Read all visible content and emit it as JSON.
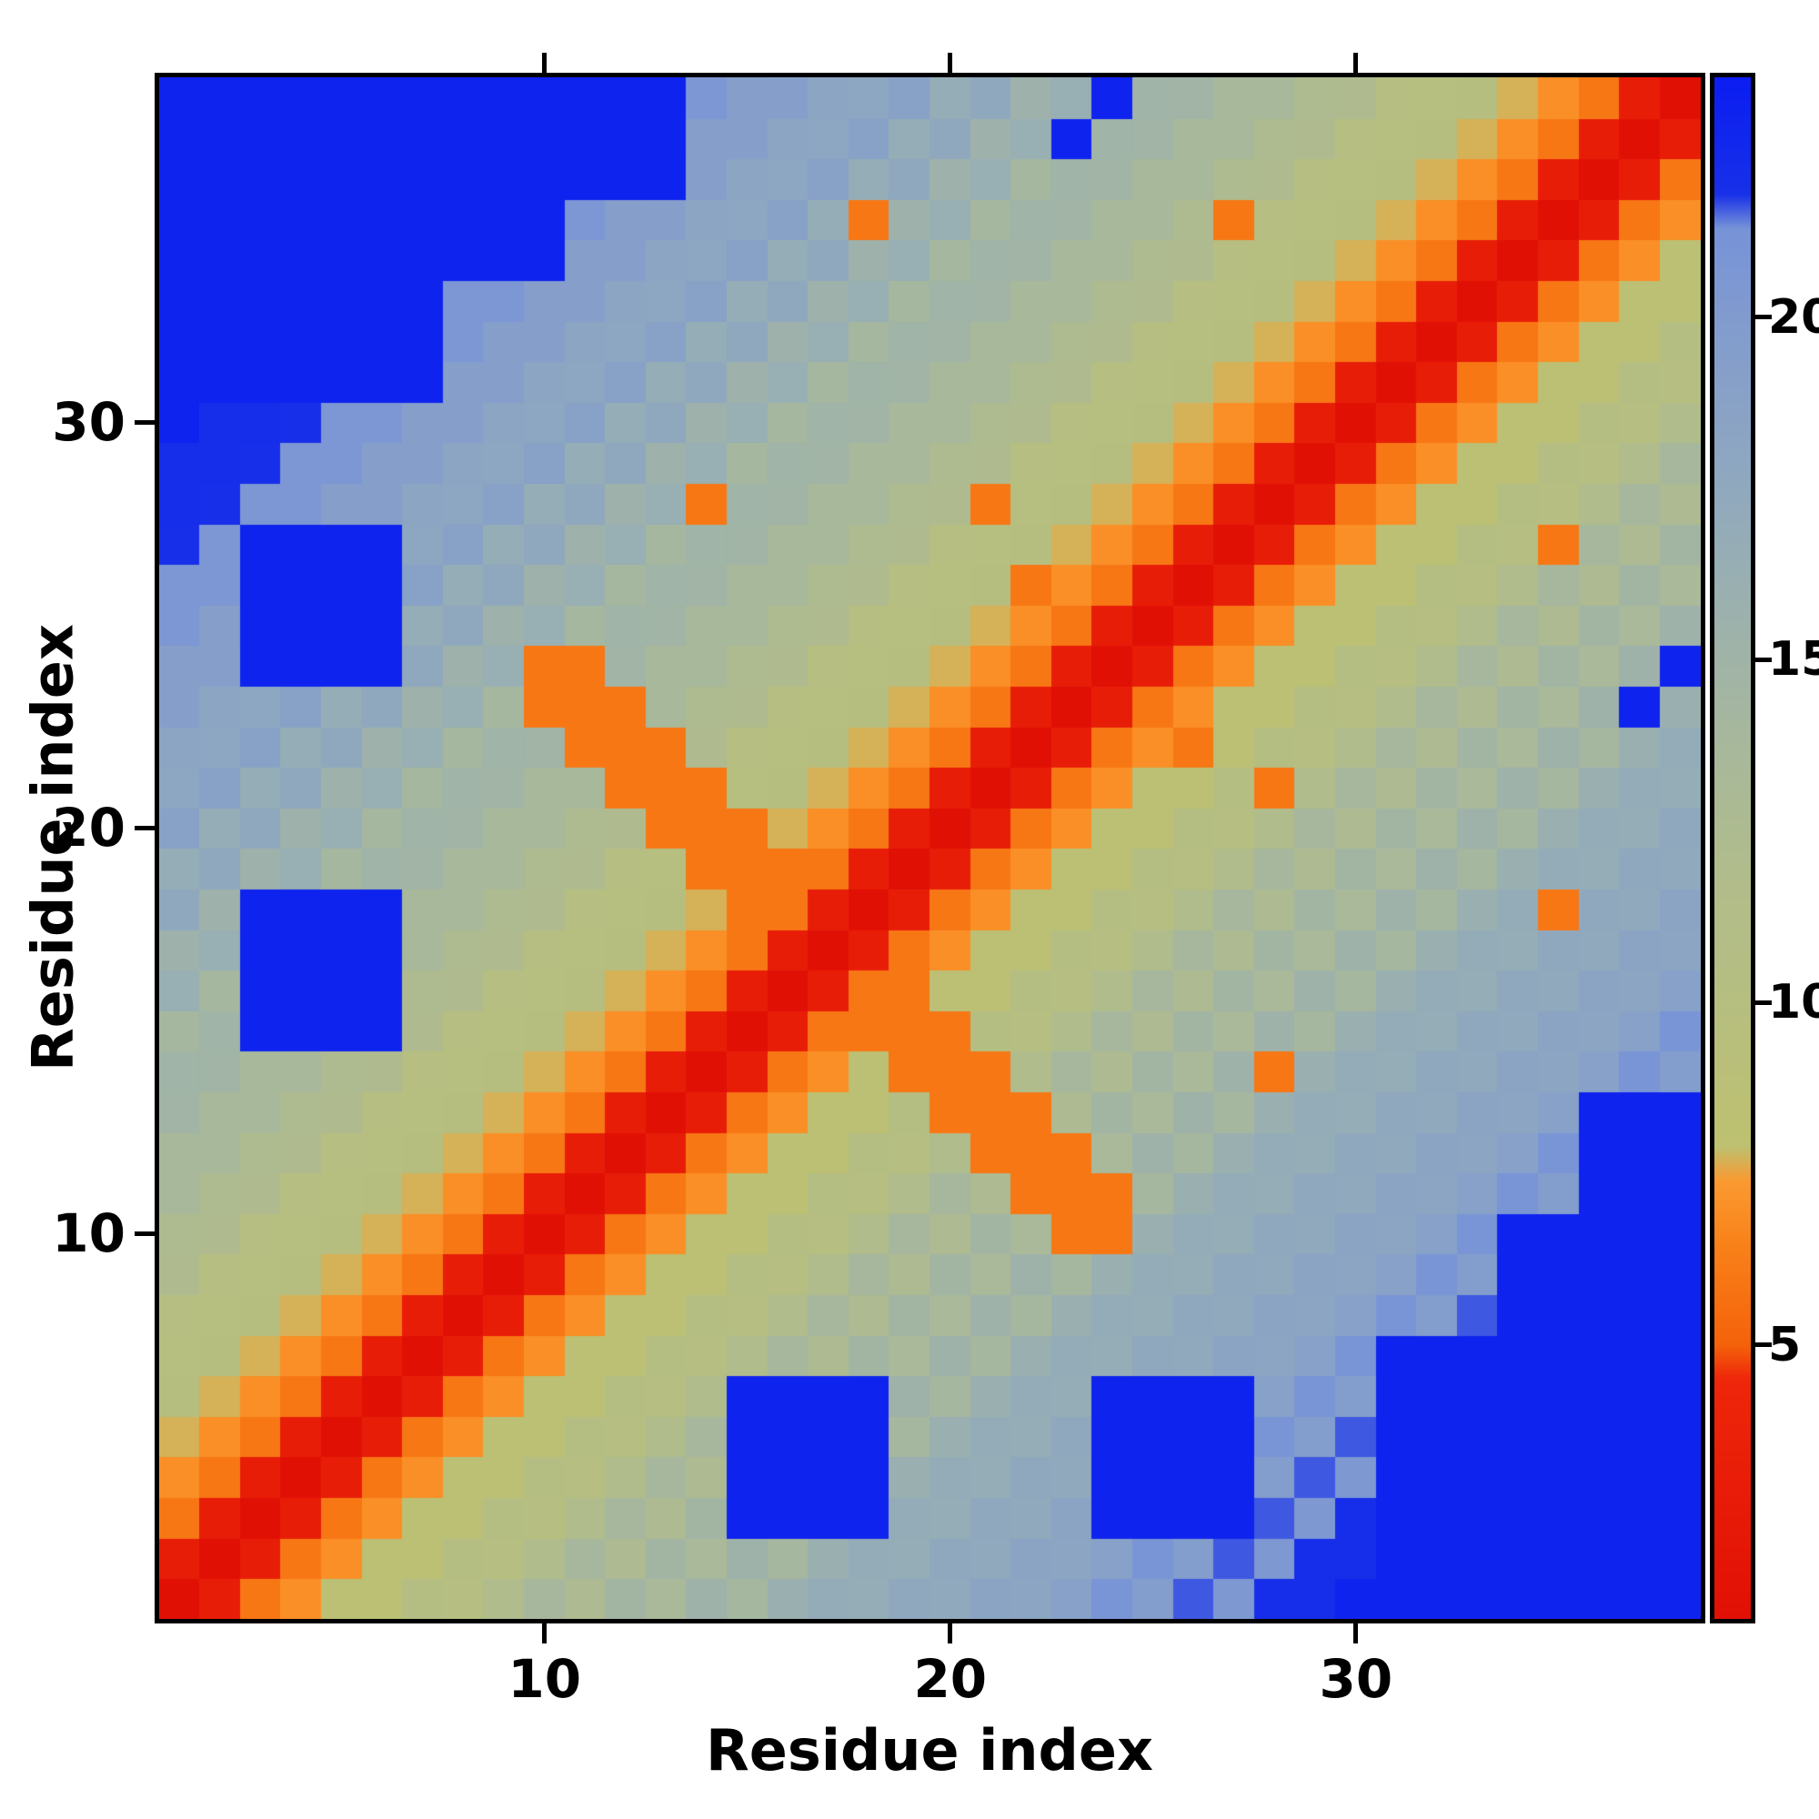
{
  "chart_data": {
    "type": "heatmap",
    "title": "",
    "xlabel": "Residue index",
    "ylabel": "Residue index",
    "x_range": [
      1,
      38
    ],
    "y_range": [
      1,
      38
    ],
    "x_ticks": [
      10,
      20,
      30
    ],
    "y_ticks": [
      10,
      20,
      30
    ],
    "grid": false,
    "colorbar": {
      "position": "right",
      "ticks": [
        5,
        10,
        15,
        20
      ],
      "value_range": [
        1,
        23.5
      ]
    },
    "colormap": [
      {
        "value": 1,
        "color": "#e11005"
      },
      {
        "value": 4.5,
        "color": "#ee260a"
      },
      {
        "value": 5,
        "color": "#f4620a"
      },
      {
        "value": 6.5,
        "color": "#f9821a"
      },
      {
        "value": 7.4,
        "color": "#fa9a31"
      },
      {
        "value": 7.9,
        "color": "#bdc170"
      },
      {
        "value": 10,
        "color": "#b6be80"
      },
      {
        "value": 12,
        "color": "#b0bc8c"
      },
      {
        "value": 14,
        "color": "#a6b79e"
      },
      {
        "value": 16,
        "color": "#9ab0b0"
      },
      {
        "value": 18,
        "color": "#8da6c2"
      },
      {
        "value": 20,
        "color": "#819bce"
      },
      {
        "value": 21.3,
        "color": "#7793d8"
      },
      {
        "value": 21.8,
        "color": "#1830e8"
      },
      {
        "value": 23.5,
        "color": "#0b1df2"
      }
    ],
    "matrix_row_order": "bottom-to-top (row 0 = residue 1)",
    "matrix": [
      [
        1,
        3,
        6,
        7,
        8,
        9,
        10,
        11,
        12,
        13,
        13,
        14,
        14,
        15,
        15,
        16,
        16,
        17,
        17,
        18,
        18,
        19,
        19,
        20,
        20,
        21,
        21,
        22,
        22,
        23,
        23,
        23,
        23,
        23,
        23,
        23,
        23,
        23
      ],
      [
        3,
        1,
        3,
        6,
        7,
        8,
        9,
        10,
        11,
        12,
        13,
        13,
        14,
        14,
        15,
        15,
        16,
        16,
        17,
        17,
        18,
        18,
        19,
        19,
        20,
        20,
        21,
        21,
        22,
        22,
        23,
        23,
        23,
        23,
        23,
        23,
        23,
        23
      ],
      [
        6,
        3,
        1,
        3,
        6,
        7,
        8,
        9,
        10,
        11,
        12,
        13,
        13,
        14,
        23,
        23,
        23,
        23,
        16,
        17,
        17,
        18,
        18,
        23,
        23,
        23,
        23,
        21,
        21,
        22,
        23,
        23,
        23,
        23,
        23,
        23,
        23,
        23
      ],
      [
        7,
        6,
        3,
        1,
        3,
        6,
        7,
        8,
        9,
        10,
        11,
        12,
        13,
        13,
        23,
        23,
        23,
        23,
        16,
        16,
        17,
        17,
        18,
        23,
        23,
        23,
        23,
        20,
        21,
        21,
        23,
        23,
        23,
        23,
        23,
        23,
        23,
        23
      ],
      [
        8,
        7,
        6,
        3,
        1,
        3,
        6,
        7,
        8,
        9,
        10,
        11,
        12,
        13,
        23,
        23,
        23,
        23,
        15,
        16,
        16,
        17,
        17,
        23,
        23,
        23,
        23,
        20,
        20,
        21,
        23,
        23,
        23,
        23,
        23,
        23,
        23,
        23
      ],
      [
        9,
        8,
        7,
        6,
        3,
        1,
        3,
        6,
        7,
        8,
        9,
        10,
        11,
        12,
        23,
        23,
        23,
        23,
        15,
        15,
        16,
        16,
        17,
        23,
        23,
        23,
        23,
        19,
        20,
        20,
        23,
        23,
        23,
        23,
        23,
        23,
        23,
        23
      ],
      [
        10,
        9,
        8,
        7,
        6,
        3,
        1,
        3,
        6,
        7,
        8,
        9,
        10,
        11,
        12,
        13,
        13,
        14,
        14,
        15,
        15,
        16,
        16,
        17,
        17,
        18,
        18,
        19,
        19,
        20,
        23,
        23,
        23,
        23,
        23,
        23,
        23,
        23
      ],
      [
        11,
        10,
        9,
        8,
        7,
        6,
        3,
        1,
        3,
        6,
        7,
        8,
        9,
        10,
        11,
        12,
        13,
        13,
        14,
        14,
        15,
        15,
        16,
        16,
        17,
        17,
        18,
        18,
        19,
        19,
        20,
        20,
        21,
        23,
        23,
        23,
        23,
        23
      ],
      [
        12,
        11,
        10,
        9,
        8,
        7,
        6,
        3,
        1,
        3,
        6,
        7,
        8,
        9,
        10,
        11,
        12,
        13,
        13,
        14,
        14,
        15,
        15,
        16,
        16,
        17,
        17,
        18,
        18,
        19,
        19,
        20,
        20,
        23,
        23,
        23,
        23,
        23
      ],
      [
        13,
        12,
        11,
        10,
        9,
        8,
        7,
        6,
        3,
        1,
        3,
        6,
        7,
        8,
        9,
        10,
        11,
        12,
        13,
        13,
        14,
        14,
        6,
        6,
        16,
        16,
        17,
        17,
        18,
        18,
        19,
        19,
        20,
        23,
        23,
        23,
        23,
        23
      ],
      [
        13,
        13,
        12,
        11,
        10,
        9,
        8,
        7,
        6,
        3,
        1,
        3,
        6,
        7,
        8,
        9,
        10,
        11,
        12,
        13,
        13,
        6,
        6,
        6,
        15,
        16,
        16,
        17,
        17,
        18,
        18,
        19,
        19,
        20,
        20,
        23,
        23,
        23
      ],
      [
        14,
        13,
        13,
        12,
        11,
        10,
        9,
        8,
        7,
        6,
        3,
        1,
        3,
        6,
        7,
        8,
        9,
        10,
        11,
        12,
        6,
        6,
        6,
        14,
        15,
        15,
        16,
        16,
        17,
        17,
        18,
        18,
        19,
        19,
        20,
        23,
        23,
        23
      ],
      [
        14,
        14,
        13,
        13,
        12,
        11,
        10,
        9,
        8,
        7,
        6,
        3,
        1,
        3,
        6,
        7,
        8,
        9,
        10,
        6,
        6,
        6,
        13,
        14,
        14,
        15,
        15,
        16,
        16,
        17,
        17,
        18,
        18,
        19,
        19,
        23,
        23,
        23
      ],
      [
        15,
        14,
        14,
        13,
        13,
        12,
        11,
        10,
        9,
        8,
        7,
        6,
        3,
        1,
        3,
        6,
        7,
        8,
        6,
        6,
        6,
        12,
        13,
        13,
        14,
        14,
        15,
        6,
        16,
        16,
        17,
        17,
        18,
        18,
        19,
        19,
        20,
        20
      ],
      [
        15,
        15,
        23,
        23,
        23,
        23,
        12,
        11,
        10,
        9,
        8,
        7,
        6,
        3,
        1,
        3,
        6,
        6,
        6,
        6,
        10,
        11,
        12,
        13,
        13,
        14,
        14,
        15,
        15,
        16,
        16,
        17,
        17,
        18,
        18,
        19,
        19,
        20
      ],
      [
        16,
        15,
        23,
        23,
        23,
        23,
        13,
        12,
        11,
        10,
        9,
        8,
        7,
        6,
        3,
        1,
        3,
        6,
        6,
        8,
        9,
        10,
        11,
        12,
        13,
        13,
        14,
        14,
        15,
        15,
        16,
        16,
        17,
        17,
        18,
        18,
        19,
        19
      ],
      [
        16,
        16,
        23,
        23,
        23,
        23,
        13,
        13,
        12,
        11,
        10,
        9,
        8,
        7,
        6,
        3,
        1,
        3,
        6,
        7,
        8,
        9,
        10,
        11,
        12,
        13,
        13,
        14,
        14,
        15,
        15,
        16,
        16,
        17,
        17,
        18,
        18,
        19
      ],
      [
        17,
        16,
        23,
        23,
        23,
        23,
        14,
        13,
        13,
        12,
        11,
        10,
        9,
        8,
        6,
        6,
        3,
        1,
        3,
        6,
        7,
        8,
        9,
        10,
        11,
        12,
        13,
        13,
        14,
        14,
        15,
        15,
        16,
        16,
        6,
        17,
        18,
        18
      ],
      [
        17,
        17,
        16,
        16,
        15,
        15,
        14,
        14,
        13,
        13,
        12,
        11,
        10,
        6,
        6,
        6,
        6,
        3,
        1,
        3,
        6,
        7,
        8,
        9,
        10,
        11,
        12,
        13,
        13,
        14,
        14,
        15,
        15,
        16,
        16,
        17,
        17,
        18
      ],
      [
        18,
        17,
        17,
        16,
        16,
        15,
        15,
        14,
        14,
        13,
        13,
        12,
        6,
        6,
        6,
        8,
        7,
        6,
        3,
        1,
        3,
        6,
        7,
        8,
        9,
        10,
        11,
        12,
        13,
        13,
        14,
        14,
        15,
        15,
        16,
        16,
        17,
        17
      ],
      [
        18,
        18,
        17,
        17,
        16,
        16,
        15,
        15,
        14,
        14,
        13,
        6,
        6,
        6,
        10,
        9,
        8,
        7,
        6,
        3,
        1,
        3,
        6,
        7,
        8,
        9,
        10,
        6,
        12,
        13,
        13,
        14,
        14,
        15,
        15,
        16,
        16,
        17
      ],
      [
        19,
        18,
        18,
        17,
        17,
        16,
        16,
        15,
        15,
        14,
        6,
        6,
        6,
        12,
        11,
        10,
        9,
        8,
        7,
        6,
        3,
        1,
        3,
        6,
        7,
        6,
        9,
        10,
        11,
        12,
        13,
        13,
        14,
        14,
        15,
        15,
        16,
        16
      ],
      [
        19,
        19,
        18,
        18,
        17,
        17,
        16,
        16,
        15,
        6,
        6,
        6,
        13,
        13,
        12,
        11,
        10,
        9,
        8,
        7,
        6,
        3,
        1,
        3,
        6,
        7,
        8,
        9,
        10,
        11,
        12,
        13,
        13,
        14,
        14,
        15,
        23,
        16
      ],
      [
        20,
        19,
        23,
        23,
        23,
        23,
        17,
        16,
        16,
        6,
        6,
        14,
        14,
        13,
        13,
        12,
        11,
        10,
        9,
        8,
        7,
        6,
        3,
        1,
        3,
        6,
        7,
        8,
        9,
        10,
        11,
        12,
        13,
        13,
        14,
        14,
        15,
        23
      ],
      [
        20,
        20,
        23,
        23,
        23,
        23,
        17,
        17,
        16,
        16,
        15,
        15,
        14,
        14,
        13,
        13,
        12,
        11,
        10,
        9,
        8,
        7,
        6,
        3,
        1,
        3,
        6,
        7,
        8,
        9,
        10,
        11,
        12,
        13,
        13,
        14,
        14,
        15
      ],
      [
        21,
        20,
        23,
        23,
        23,
        23,
        18,
        17,
        17,
        16,
        16,
        15,
        15,
        14,
        14,
        13,
        13,
        12,
        11,
        10,
        9,
        6,
        7,
        6,
        3,
        1,
        3,
        6,
        7,
        8,
        9,
        10,
        11,
        12,
        13,
        13,
        14,
        14
      ],
      [
        21,
        21,
        23,
        23,
        23,
        23,
        18,
        18,
        17,
        17,
        16,
        16,
        15,
        15,
        14,
        14,
        13,
        13,
        12,
        11,
        10,
        9,
        8,
        7,
        6,
        3,
        1,
        3,
        6,
        7,
        8,
        9,
        10,
        11,
        6,
        13,
        13,
        14
      ],
      [
        22,
        21,
        21,
        20,
        20,
        19,
        19,
        18,
        18,
        17,
        17,
        16,
        16,
        6,
        15,
        14,
        14,
        13,
        13,
        12,
        6,
        10,
        9,
        8,
        7,
        6,
        3,
        1,
        3,
        6,
        7,
        8,
        9,
        10,
        11,
        12,
        13,
        13
      ],
      [
        22,
        22,
        21,
        21,
        20,
        20,
        19,
        19,
        18,
        18,
        17,
        17,
        16,
        16,
        15,
        15,
        14,
        14,
        13,
        13,
        12,
        11,
        10,
        9,
        8,
        7,
        6,
        3,
        1,
        3,
        6,
        7,
        8,
        9,
        10,
        11,
        12,
        13
      ],
      [
        23,
        22,
        22,
        21,
        21,
        20,
        20,
        19,
        19,
        18,
        18,
        17,
        17,
        16,
        16,
        15,
        15,
        14,
        14,
        13,
        13,
        12,
        11,
        10,
        9,
        8,
        7,
        6,
        3,
        1,
        3,
        6,
        7,
        8,
        9,
        10,
        11,
        12
      ],
      [
        23,
        23,
        23,
        23,
        23,
        23,
        23,
        20,
        19,
        19,
        18,
        18,
        17,
        17,
        16,
        16,
        15,
        15,
        14,
        14,
        13,
        13,
        12,
        11,
        10,
        9,
        8,
        7,
        6,
        3,
        1,
        3,
        6,
        7,
        8,
        9,
        10,
        11
      ],
      [
        23,
        23,
        23,
        23,
        23,
        23,
        23,
        20,
        20,
        19,
        19,
        18,
        18,
        17,
        17,
        16,
        16,
        15,
        15,
        14,
        14,
        13,
        13,
        12,
        11,
        10,
        9,
        8,
        7,
        6,
        3,
        1,
        3,
        6,
        7,
        8,
        9,
        10
      ],
      [
        23,
        23,
        23,
        23,
        23,
        23,
        23,
        21,
        20,
        20,
        19,
        19,
        18,
        18,
        17,
        17,
        16,
        16,
        15,
        15,
        14,
        14,
        13,
        13,
        12,
        11,
        10,
        9,
        8,
        7,
        6,
        3,
        1,
        3,
        6,
        7,
        8,
        9
      ],
      [
        23,
        23,
        23,
        23,
        23,
        23,
        23,
        23,
        23,
        23,
        20,
        19,
        19,
        18,
        18,
        17,
        17,
        16,
        16,
        15,
        15,
        14,
        14,
        13,
        13,
        12,
        11,
        10,
        9,
        8,
        7,
        6,
        3,
        1,
        3,
        6,
        7,
        8
      ],
      [
        23,
        23,
        23,
        23,
        23,
        23,
        23,
        23,
        23,
        23,
        20,
        20,
        19,
        19,
        18,
        18,
        17,
        6,
        16,
        16,
        15,
        15,
        14,
        14,
        13,
        13,
        6,
        11,
        10,
        9,
        8,
        7,
        6,
        3,
        1,
        3,
        6,
        7
      ],
      [
        23,
        23,
        23,
        23,
        23,
        23,
        23,
        23,
        23,
        23,
        23,
        23,
        23,
        19,
        19,
        18,
        18,
        17,
        17,
        16,
        16,
        15,
        15,
        14,
        14,
        13,
        13,
        12,
        11,
        10,
        9,
        8,
        7,
        6,
        3,
        1,
        3,
        6
      ],
      [
        23,
        23,
        23,
        23,
        23,
        23,
        23,
        23,
        23,
        23,
        23,
        23,
        23,
        20,
        19,
        19,
        18,
        18,
        17,
        17,
        16,
        16,
        23,
        15,
        14,
        14,
        13,
        13,
        12,
        11,
        10,
        9,
        8,
        7,
        6,
        3,
        1,
        3
      ],
      [
        23,
        23,
        23,
        23,
        23,
        23,
        23,
        23,
        23,
        23,
        23,
        23,
        23,
        20,
        20,
        19,
        19,
        18,
        18,
        17,
        17,
        16,
        16,
        23,
        15,
        14,
        14,
        13,
        13,
        12,
        11,
        10,
        9,
        8,
        7,
        6,
        3,
        1
      ]
    ]
  }
}
